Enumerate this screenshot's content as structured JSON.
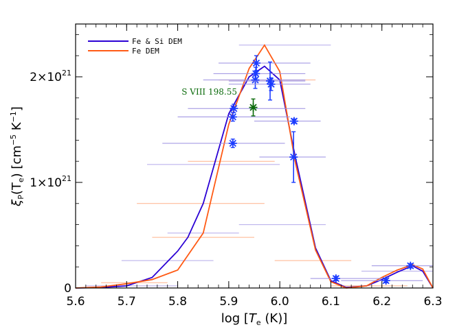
{
  "chart_data": {
    "type": "line",
    "xlabel_prefix": "log [",
    "xlabel_var": "T",
    "xlabel_sub": "e",
    "xlabel_suffix": " (K)]",
    "ylabel_var": "ξ",
    "ylabel_sub": "P",
    "ylabel_mid": "(T",
    "ylabel_mid_sub": "e",
    "ylabel_units": ") [cm",
    "ylabel_units_sup": "−5",
    "ylabel_units2": " K",
    "ylabel_units_sup2": "−1",
    "ylabel_end": "]",
    "xlim": [
      5.6,
      6.3
    ],
    "ylim": [
      0,
      2.5e+21
    ],
    "x_ticks": [
      {
        "value": 5.6,
        "label": "5.6"
      },
      {
        "value": 5.7,
        "label": "5.7"
      },
      {
        "value": 5.8,
        "label": "5.8"
      },
      {
        "value": 5.9,
        "label": "5.9"
      },
      {
        "value": 6.0,
        "label": "6.0"
      },
      {
        "value": 6.1,
        "label": "6.1"
      },
      {
        "value": 6.2,
        "label": "6.2"
      },
      {
        "value": 6.3,
        "label": "6.3"
      }
    ],
    "y_ticks": [
      {
        "value": 0,
        "mant": "0",
        "exp": ""
      },
      {
        "value": 1e+21,
        "mant": "1×10",
        "exp": "21"
      },
      {
        "value": 2e+21,
        "mant": "2×10",
        "exp": "21"
      }
    ],
    "legend": [
      {
        "label": "Fe & Si DEM",
        "color": "#2a00d4"
      },
      {
        "label": "Fe DEM",
        "color": "#ff5a14"
      }
    ],
    "series": [
      {
        "name": "Fe & Si DEM",
        "color": "#2a00d4",
        "x": [
          5.6,
          5.65,
          5.7,
          5.75,
          5.8,
          5.82,
          5.85,
          5.9,
          5.94,
          5.97,
          6.0,
          6.03,
          6.07,
          6.1,
          6.13,
          6.17,
          6.2,
          6.23,
          6.26,
          6.28,
          6.3
        ],
        "y": [
          0,
          5e+18,
          2e+19,
          1e+20,
          3.5e+20,
          4.8e+20,
          8e+20,
          1.65e+21,
          2e+21,
          2.1e+21,
          1.97e+21,
          1.25e+21,
          3.8e+20,
          7e+19,
          5e+18,
          2e+19,
          8e+19,
          1.5e+20,
          2.1e+20,
          1.6e+20,
          0.0
        ]
      },
      {
        "name": "Fe DEM",
        "color": "#ff5a14",
        "x": [
          5.6,
          5.65,
          5.7,
          5.75,
          5.8,
          5.85,
          5.9,
          5.94,
          5.97,
          6.0,
          6.03,
          6.07,
          6.1,
          6.13,
          6.17,
          6.2,
          6.23,
          6.26,
          6.28,
          6.3
        ],
        "y": [
          0,
          1e+19,
          4e+19,
          8e+19,
          1.7e+20,
          5.2e+20,
          1.55e+21,
          2.08e+21,
          2.3e+21,
          2.05e+21,
          1.2e+21,
          3.6e+20,
          6e+19,
          0.0,
          2e+19,
          1e+20,
          1.7e+20,
          2.2e+20,
          1.8e+20,
          0.0
        ]
      }
    ],
    "points": [
      {
        "x": 5.908,
        "y": 1.37e+21,
        "yerr": 4e+19,
        "xlo": 5.77,
        "xhi": 6.01,
        "color": "#1c3cff",
        "bar": "#9a8ee0"
      },
      {
        "x": 5.908,
        "y": 1.62e+21,
        "yerr": 4e+19,
        "xlo": 5.8,
        "xhi": 6.02,
        "color": "#1c3cff",
        "bar": "#9a8ee0"
      },
      {
        "x": 5.91,
        "y": 1.7e+21,
        "yerr": 4e+19,
        "xlo": 5.82,
        "xhi": 6.05,
        "color": "#1c3cff",
        "bar": "#9a8ee0"
      },
      {
        "x": 5.952,
        "y": 1.97e+21,
        "yerr": 8e+19,
        "xlo": 5.85,
        "xhi": 6.05,
        "color": "#1c3cff",
        "bar": "#9a8ee0"
      },
      {
        "x": 5.953,
        "y": 2.03e+21,
        "yerr": 6e+19,
        "xlo": 5.87,
        "xhi": 6.05,
        "color": "#1c3cff",
        "bar": "#9a8ee0"
      },
      {
        "x": 5.954,
        "y": 2.13e+21,
        "yerr": 7e+19,
        "xlo": 5.88,
        "xhi": 6.06,
        "color": "#1c3cff",
        "bar": "#9a8ee0"
      },
      {
        "x": 5.981,
        "y": 1.96e+21,
        "yerr": 1.8e+20,
        "xlo": 5.9,
        "xhi": 6.05,
        "color": "#1c3cff",
        "bar": "#9a8ee0"
      },
      {
        "x": 5.983,
        "y": 1.93e+21,
        "yerr": 6e+19,
        "xlo": 5.9,
        "xhi": 6.06,
        "color": "#1c3cff",
        "bar": "#9a8ee0"
      },
      {
        "x": 6.028,
        "y": 1.58e+21,
        "yerr": 2e+19,
        "xlo": 5.95,
        "xhi": 6.08,
        "color": "#1c3cff",
        "bar": "#9a8ee0"
      },
      {
        "x": 6.027,
        "y": 1.24e+21,
        "yerr": 2.4e+20,
        "xlo": 5.96,
        "xhi": 6.09,
        "color": "#1c3cff",
        "bar": "#9a8ee0"
      },
      {
        "x": 6.11,
        "y": 9e+19,
        "yerr": 2e+19,
        "xlo": 6.06,
        "xhi": 6.2,
        "color": "#1c3cff",
        "bar": "#9a8ee0"
      },
      {
        "x": 6.208,
        "y": 7e+19,
        "yerr": 2e+19,
        "xlo": 6.12,
        "xhi": 6.28,
        "color": "#1c3cff",
        "bar": "#9a8ee0"
      },
      {
        "x": 6.256,
        "y": 2.1e+20,
        "yerr": 2e+19,
        "xlo": 6.18,
        "xhi": 6.3,
        "color": "#1c3cff",
        "bar": "#9a8ee0"
      },
      {
        "x": 5.948,
        "y": 1.71e+21,
        "yerr": 8e+19,
        "xlo": 5.948,
        "xhi": 5.948,
        "color": "#0a6a0a",
        "bar": "#0a6a0a"
      }
    ],
    "extra_bars": [
      {
        "y": 2.6e+20,
        "xlo": 5.69,
        "xhi": 5.87
      },
      {
        "y": 4.8e+20,
        "xlo": 5.75,
        "xhi": 5.95
      },
      {
        "y": 5.2e+20,
        "xlo": 5.78,
        "xhi": 5.92
      },
      {
        "y": 8e+20,
        "xlo": 5.72,
        "xhi": 5.97
      },
      {
        "y": 1.17e+21,
        "xlo": 5.74,
        "xhi": 6.0
      },
      {
        "y": 1.2e+21,
        "xlo": 5.82,
        "xhi": 5.99
      },
      {
        "y": 6e+20,
        "xlo": 5.92,
        "xhi": 6.09
      },
      {
        "y": 2.6e+20,
        "xlo": 5.99,
        "xhi": 6.14
      },
      {
        "y": 2e+19,
        "xlo": 5.62,
        "xhi": 5.8
      },
      {
        "y": 5e+19,
        "xlo": 5.65,
        "xhi": 5.78
      },
      {
        "y": 2.3e+21,
        "xlo": 5.92,
        "xhi": 6.1
      },
      {
        "y": 1.97e+21,
        "xlo": 5.88,
        "xhi": 6.07
      },
      {
        "y": 1.6e+20,
        "xlo": 6.16,
        "xhi": 6.3
      },
      {
        "y": 2e+19,
        "xlo": 6.1,
        "xhi": 6.25
      }
    ],
    "annotation": {
      "text": "S VIII 198.55",
      "x": 5.862,
      "y": 1.83e+21,
      "color": "#0a6a0a"
    }
  }
}
